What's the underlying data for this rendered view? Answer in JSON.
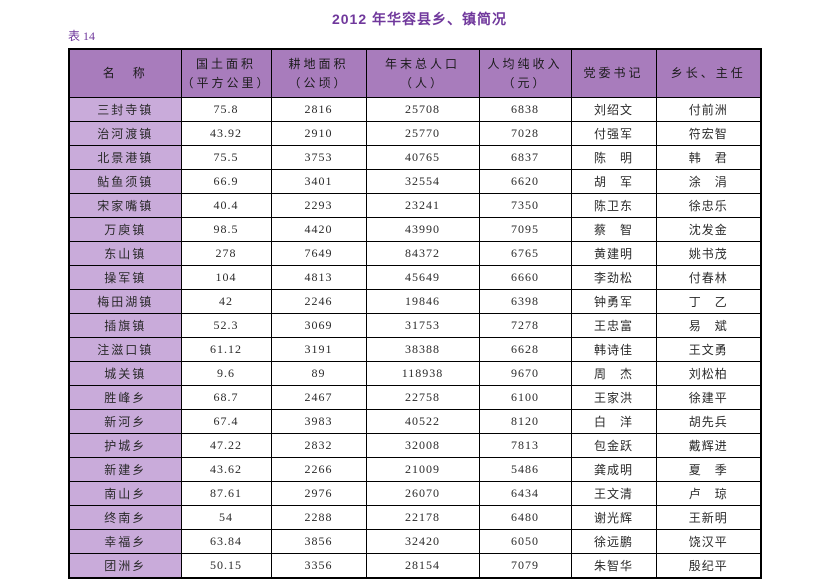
{
  "title": "2012 年华容县乡、镇简况",
  "table_label": "表 14",
  "colors": {
    "title_color": "#70389c",
    "header_bg": "#a87cbc",
    "name_column_bg": "#c9abda",
    "border": "#000000"
  },
  "table": {
    "columns": [
      {
        "line1": "名　称",
        "line2": ""
      },
      {
        "line1": "国土面积",
        "line2": "（平方公里）"
      },
      {
        "line1": "耕地面积",
        "line2": "（公顷）"
      },
      {
        "line1": "年末总人口",
        "line2": "（人）"
      },
      {
        "line1": "人均纯收入",
        "line2": "（元）"
      },
      {
        "line1": "党委书记",
        "line2": ""
      },
      {
        "line1": "乡长、主任",
        "line2": ""
      }
    ],
    "rows": [
      [
        "三封寺镇",
        "75.8",
        "2816",
        "25708",
        "6838",
        "刘绍文",
        "付前洲"
      ],
      [
        "治河渡镇",
        "43.92",
        "2910",
        "25770",
        "7028",
        "付强军",
        "符宏智"
      ],
      [
        "北景港镇",
        "75.5",
        "3753",
        "40765",
        "6837",
        "陈　明",
        "韩　君"
      ],
      [
        "鲇鱼须镇",
        "66.9",
        "3401",
        "32554",
        "6620",
        "胡　军",
        "涂　涓"
      ],
      [
        "宋家嘴镇",
        "40.4",
        "2293",
        "23241",
        "7350",
        "陈卫东",
        "徐忠乐"
      ],
      [
        "万庾镇",
        "98.5",
        "4420",
        "43990",
        "7095",
        "蔡　智",
        "沈发金"
      ],
      [
        "东山镇",
        "278",
        "7649",
        "84372",
        "6765",
        "黄建明",
        "姚书茂"
      ],
      [
        "操军镇",
        "104",
        "4813",
        "45649",
        "6660",
        "李劲松",
        "付春林"
      ],
      [
        "梅田湖镇",
        "42",
        "2246",
        "19846",
        "6398",
        "钟勇军",
        "丁　乙"
      ],
      [
        "插旗镇",
        "52.3",
        "3069",
        "31753",
        "7278",
        "王忠富",
        "易　斌"
      ],
      [
        "注滋口镇",
        "61.12",
        "3191",
        "38388",
        "6628",
        "韩诗佳",
        "王文勇"
      ],
      [
        "城关镇",
        "9.6",
        "89",
        "118938",
        "9670",
        "周　杰",
        "刘松柏"
      ],
      [
        "胜峰乡",
        "68.7",
        "2467",
        "22758",
        "6100",
        "王家洪",
        "徐建平"
      ],
      [
        "新河乡",
        "67.4",
        "3983",
        "40522",
        "8120",
        "白　洋",
        "胡先兵"
      ],
      [
        "护城乡",
        "47.22",
        "2832",
        "32008",
        "7813",
        "包金跃",
        "戴辉进"
      ],
      [
        "新建乡",
        "43.62",
        "2266",
        "21009",
        "5486",
        "龚成明",
        "夏　季"
      ],
      [
        "南山乡",
        "87.61",
        "2976",
        "26070",
        "6434",
        "王文清",
        "卢　琼"
      ],
      [
        "终南乡",
        "54",
        "2288",
        "22178",
        "6480",
        "谢光辉",
        "王新明"
      ],
      [
        "幸福乡",
        "63.84",
        "3856",
        "32420",
        "6050",
        "徐远鹏",
        "饶汉平"
      ],
      [
        "团洲乡",
        "50.15",
        "3356",
        "28154",
        "7079",
        "朱智华",
        "殷纪平"
      ]
    ]
  }
}
